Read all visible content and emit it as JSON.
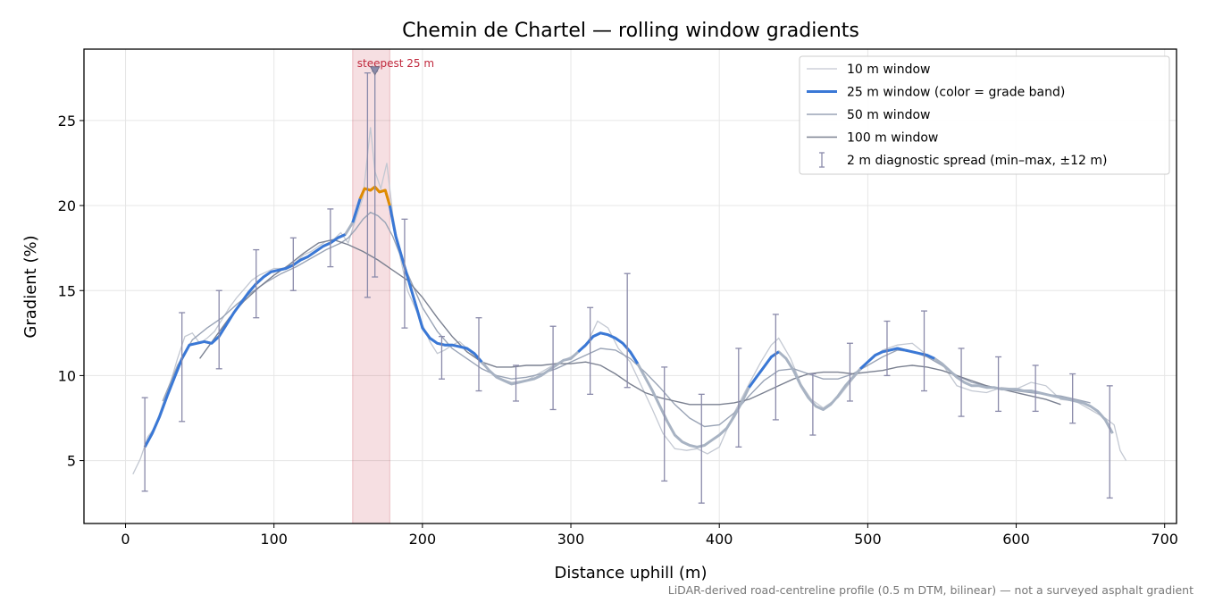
{
  "chart_data": {
    "type": "line",
    "title": "Chemin de Chartel — rolling window gradients",
    "xlabel": "Distance uphill (m)",
    "ylabel": "Gradient (%)",
    "xlim": [
      -28,
      708
    ],
    "ylim": [
      1.3,
      29.2
    ],
    "xticks": [
      0,
      100,
      200,
      300,
      400,
      500,
      600,
      700
    ],
    "yticks": [
      5,
      10,
      15,
      20,
      25
    ],
    "grid": true,
    "legend_position": "top-right",
    "caption": "LiDAR-derived road-centreline profile (0.5 m DTM, bilinear) — not a surveyed asphalt gradient",
    "annotation": {
      "text": "steepest 25 m",
      "band": [
        153,
        178
      ],
      "marker": [
        168,
        27.9
      ],
      "color": "#c0283c"
    },
    "series": [
      {
        "name": "10 m window",
        "color": "#c3c8d2",
        "x": [
          5,
          10,
          15,
          20,
          25,
          30,
          35,
          40,
          45,
          50,
          55,
          60,
          65,
          70,
          75,
          80,
          85,
          90,
          95,
          100,
          105,
          110,
          115,
          120,
          125,
          130,
          135,
          140,
          145,
          150,
          155,
          160,
          165,
          168,
          172,
          176,
          180,
          185,
          190,
          195,
          200,
          205,
          210,
          215,
          220,
          225,
          230,
          240,
          250,
          260,
          270,
          280,
          290,
          300,
          310,
          318,
          325,
          332,
          340,
          348,
          355,
          362,
          370,
          378,
          385,
          392,
          400,
          410,
          420,
          428,
          435,
          440,
          448,
          455,
          462,
          470,
          480,
          490,
          500,
          510,
          520,
          530,
          540,
          550,
          560,
          570,
          580,
          590,
          600,
          610,
          620,
          630,
          640,
          650,
          660,
          666,
          670,
          674
        ],
        "values": [
          4.2,
          5.1,
          6.4,
          7.0,
          8.3,
          9.5,
          11.0,
          12.3,
          12.5,
          11.9,
          12.2,
          12.6,
          13.3,
          14.0,
          14.6,
          15.1,
          15.6,
          15.9,
          16.1,
          16.3,
          16.3,
          16.4,
          16.7,
          17.1,
          17.3,
          17.6,
          17.9,
          18.0,
          18.4,
          17.8,
          19.2,
          20.5,
          24.6,
          22.0,
          21.0,
          22.5,
          19.5,
          17.0,
          15.0,
          14.0,
          13.0,
          12.0,
          11.3,
          11.5,
          11.8,
          12.0,
          11.6,
          10.7,
          9.9,
          9.6,
          9.7,
          10.2,
          10.7,
          11.1,
          11.7,
          13.2,
          12.8,
          11.6,
          10.8,
          9.3,
          8.0,
          6.6,
          5.7,
          5.6,
          5.7,
          5.4,
          5.8,
          7.8,
          9.5,
          10.8,
          11.8,
          12.2,
          11.0,
          9.5,
          8.6,
          8.1,
          8.7,
          9.8,
          10.8,
          11.5,
          11.8,
          11.9,
          11.2,
          10.7,
          9.4,
          9.1,
          9.0,
          9.3,
          9.2,
          9.6,
          9.4,
          8.6,
          8.5,
          8.0,
          7.5,
          7.1,
          5.6,
          5.0
        ]
      },
      {
        "name": "25 m window (color = grade band)",
        "color": "#3a78d6",
        "color_steep": "#e08b00",
        "x": [
          13,
          18,
          23,
          28,
          33,
          38,
          43,
          48,
          53,
          58,
          63,
          68,
          73,
          78,
          83,
          88,
          93,
          98,
          103,
          108,
          113,
          118,
          123,
          128,
          133,
          138,
          143,
          148,
          153,
          158,
          161,
          165,
          168,
          171,
          175,
          178,
          182,
          186,
          190,
          195,
          200,
          205,
          210,
          215,
          220,
          225,
          230,
          235,
          240,
          245,
          250,
          255,
          260,
          265,
          270,
          275,
          280,
          285,
          290,
          295,
          300,
          305,
          310,
          315,
          320,
          325,
          330,
          335,
          340,
          345,
          350,
          355,
          360,
          365,
          370,
          375,
          380,
          385,
          390,
          395,
          400,
          405,
          410,
          415,
          420,
          425,
          430,
          435,
          440,
          445,
          450,
          455,
          460,
          465,
          470,
          475,
          480,
          485,
          490,
          495,
          500,
          505,
          510,
          515,
          520,
          525,
          530,
          535,
          540,
          545,
          550,
          555,
          560,
          565,
          570,
          575,
          580,
          585,
          590,
          595,
          600,
          605,
          610,
          615,
          620,
          625,
          630,
          635,
          640,
          645,
          650,
          655,
          660,
          665
        ],
        "values": [
          5.8,
          6.6,
          7.6,
          8.8,
          9.9,
          11.0,
          11.8,
          11.9,
          12.0,
          11.9,
          12.3,
          13.0,
          13.7,
          14.3,
          14.9,
          15.4,
          15.8,
          16.1,
          16.2,
          16.3,
          16.5,
          16.8,
          17.0,
          17.3,
          17.6,
          17.8,
          18.1,
          18.3,
          19.0,
          20.4,
          21.0,
          20.9,
          21.1,
          20.8,
          20.9,
          20.0,
          18.2,
          17.0,
          15.8,
          14.3,
          12.8,
          12.2,
          11.9,
          11.8,
          11.8,
          11.7,
          11.6,
          11.3,
          10.8,
          10.3,
          9.9,
          9.7,
          9.5,
          9.6,
          9.7,
          9.8,
          10.0,
          10.3,
          10.6,
          10.9,
          11.0,
          11.4,
          11.8,
          12.3,
          12.5,
          12.4,
          12.2,
          11.9,
          11.4,
          10.7,
          9.9,
          9.1,
          8.2,
          7.3,
          6.5,
          6.1,
          5.9,
          5.8,
          5.9,
          6.2,
          6.5,
          6.9,
          7.6,
          8.4,
          9.3,
          9.9,
          10.5,
          11.1,
          11.4,
          11.0,
          10.3,
          9.4,
          8.7,
          8.2,
          8.0,
          8.3,
          8.8,
          9.4,
          9.9,
          10.4,
          10.8,
          11.2,
          11.4,
          11.5,
          11.6,
          11.5,
          11.4,
          11.3,
          11.2,
          11.0,
          10.7,
          10.3,
          9.9,
          9.6,
          9.4,
          9.4,
          9.3,
          9.3,
          9.2,
          9.2,
          9.2,
          9.1,
          9.1,
          9.0,
          8.9,
          8.8,
          8.7,
          8.6,
          8.5,
          8.4,
          8.2,
          7.9,
          7.4,
          6.6
        ],
        "steep_range": [
          158,
          178
        ],
        "band_blue_ranges": [
          [
            13,
            150
          ],
          [
            150,
            158
          ],
          [
            178,
            240
          ],
          [
            305,
            345
          ],
          [
            420,
            440
          ],
          [
            495,
            545
          ]
        ]
      },
      {
        "name": "50 m window",
        "color": "#9aa4b6",
        "x": [
          25,
          35,
          45,
          55,
          65,
          75,
          85,
          95,
          105,
          115,
          125,
          135,
          145,
          150,
          155,
          160,
          165,
          170,
          175,
          180,
          185,
          190,
          195,
          200,
          205,
          210,
          220,
          230,
          240,
          250,
          260,
          270,
          280,
          290,
          300,
          310,
          320,
          330,
          340,
          350,
          360,
          370,
          380,
          390,
          400,
          410,
          420,
          430,
          440,
          450,
          460,
          470,
          480,
          490,
          500,
          510,
          520,
          530,
          540,
          550,
          560,
          570,
          580,
          590,
          600,
          610,
          620,
          630,
          640,
          650
        ],
        "values": [
          8.5,
          10.6,
          12.1,
          12.8,
          13.4,
          14.2,
          14.9,
          15.5,
          16.0,
          16.4,
          16.9,
          17.4,
          17.8,
          18.1,
          18.6,
          19.2,
          19.6,
          19.4,
          19.0,
          18.2,
          17.1,
          16.0,
          15.0,
          14.0,
          13.3,
          12.6,
          11.6,
          11.0,
          10.4,
          10.0,
          9.8,
          9.9,
          10.1,
          10.4,
          10.8,
          11.2,
          11.6,
          11.5,
          11.0,
          10.2,
          9.3,
          8.3,
          7.5,
          7.0,
          7.1,
          7.8,
          8.8,
          9.7,
          10.3,
          10.4,
          10.1,
          9.8,
          9.8,
          10.1,
          10.6,
          11.1,
          11.5,
          11.4,
          11.1,
          10.6,
          10.0,
          9.6,
          9.4,
          9.2,
          9.1,
          9.0,
          8.9,
          8.8,
          8.6,
          8.4
        ]
      },
      {
        "name": "100 m window",
        "color": "#7a8090",
        "x": [
          50,
          60,
          70,
          80,
          90,
          100,
          110,
          120,
          130,
          140,
          150,
          160,
          170,
          180,
          190,
          200,
          210,
          220,
          230,
          240,
          250,
          260,
          270,
          280,
          290,
          300,
          310,
          320,
          330,
          340,
          350,
          360,
          370,
          380,
          390,
          400,
          410,
          420,
          430,
          440,
          450,
          460,
          470,
          480,
          490,
          500,
          510,
          520,
          530,
          540,
          550,
          560,
          570,
          580,
          590,
          600,
          610,
          620,
          630
        ],
        "values": [
          11.0,
          12.2,
          13.4,
          14.4,
          15.2,
          15.9,
          16.5,
          17.2,
          17.8,
          18.0,
          17.7,
          17.3,
          16.8,
          16.2,
          15.6,
          14.6,
          13.4,
          12.3,
          11.4,
          10.8,
          10.5,
          10.5,
          10.6,
          10.6,
          10.7,
          10.7,
          10.8,
          10.6,
          10.1,
          9.5,
          9.0,
          8.7,
          8.5,
          8.3,
          8.3,
          8.3,
          8.4,
          8.6,
          9.0,
          9.4,
          9.8,
          10.1,
          10.2,
          10.2,
          10.1,
          10.2,
          10.3,
          10.5,
          10.6,
          10.5,
          10.3,
          10.0,
          9.7,
          9.4,
          9.2,
          9.0,
          8.8,
          8.6,
          8.3
        ]
      },
      {
        "name": "2 m diagnostic spread (min–max, ±12 m)",
        "color": "#8a8aaa",
        "type": "errorbar",
        "x": [
          13,
          38,
          63,
          88,
          113,
          138,
          163,
          168,
          188,
          213,
          238,
          263,
          288,
          313,
          338,
          363,
          388,
          413,
          438,
          463,
          488,
          513,
          538,
          563,
          588,
          613,
          638,
          663
        ],
        "y": [
          5.8,
          11.0,
          12.3,
          15.4,
          16.5,
          17.8,
          21.0,
          21.1,
          16.0,
          11.9,
          10.8,
          9.5,
          10.4,
          11.8,
          11.9,
          7.3,
          5.8,
          8.4,
          11.2,
          8.2,
          9.9,
          11.4,
          11.3,
          9.6,
          9.3,
          9.1,
          8.6,
          6.6
        ],
        "low": [
          3.2,
          7.3,
          10.4,
          13.4,
          15.0,
          16.4,
          14.6,
          15.8,
          12.8,
          9.8,
          9.1,
          8.5,
          8.0,
          8.9,
          9.3,
          3.8,
          2.5,
          5.8,
          7.4,
          6.5,
          8.5,
          10.0,
          9.1,
          7.6,
          7.9,
          7.9,
          7.2,
          2.8
        ],
        "high": [
          8.7,
          13.7,
          15.0,
          17.4,
          18.1,
          19.8,
          27.8,
          27.9,
          19.2,
          12.3,
          13.4,
          10.6,
          12.9,
          14.0,
          16.0,
          10.5,
          8.9,
          11.6,
          13.6,
          10.1,
          11.9,
          13.2,
          13.8,
          11.6,
          11.1,
          10.6,
          10.1,
          9.4
        ]
      }
    ]
  }
}
